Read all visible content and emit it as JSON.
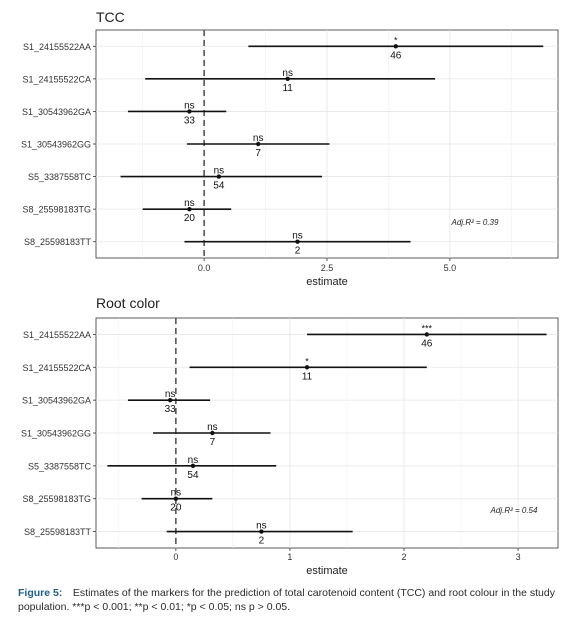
{
  "chart_data": [
    {
      "type": "forest",
      "title": "TCC",
      "xlabel": "estimate",
      "xlim": [
        -2.2,
        7.2
      ],
      "xticks": [
        "0.0",
        "2.5",
        "5.0"
      ],
      "xtick_values": [
        0,
        2.5,
        5.0
      ],
      "reference_line": 0,
      "grid": true,
      "annotation": "Adj.R² = 0.39",
      "rows": [
        {
          "label": "S1_24155522AA",
          "estimate": 3.9,
          "low": 0.9,
          "high": 6.9,
          "sig": "*",
          "n": "46"
        },
        {
          "label": "S1_24155522CA",
          "estimate": 1.7,
          "low": -1.2,
          "high": 4.7,
          "sig": "ns",
          "n": "11"
        },
        {
          "label": "S1_30543962GA",
          "estimate": -0.3,
          "low": -1.55,
          "high": 0.45,
          "sig": "ns",
          "n": "33"
        },
        {
          "label": "S1_30543962GG",
          "estimate": 1.1,
          "low": -0.35,
          "high": 2.55,
          "sig": "ns",
          "n": "7"
        },
        {
          "label": "S5_3387558TC",
          "estimate": 0.3,
          "low": -1.7,
          "high": 2.4,
          "sig": "ns",
          "n": "54"
        },
        {
          "label": "S8_25598183TG",
          "estimate": -0.3,
          "low": -1.25,
          "high": 0.55,
          "sig": "ns",
          "n": "20"
        },
        {
          "label": "S8_25598183TT",
          "estimate": 1.9,
          "low": -0.4,
          "high": 4.2,
          "sig": "ns",
          "n": "2"
        }
      ]
    },
    {
      "type": "forest",
      "title": "Root color",
      "xlabel": "estimate",
      "xlim": [
        -0.7,
        3.35
      ],
      "xticks": [
        "0",
        "1",
        "2",
        "3"
      ],
      "xtick_values": [
        0,
        1,
        2,
        3
      ],
      "reference_line": 0,
      "grid": true,
      "annotation": "Adj.R² = 0.54",
      "rows": [
        {
          "label": "S1_24155522AA",
          "estimate": 2.2,
          "low": 1.15,
          "high": 3.25,
          "sig": "***",
          "n": "46"
        },
        {
          "label": "S1_24155522CA",
          "estimate": 1.15,
          "low": 0.12,
          "high": 2.2,
          "sig": "*",
          "n": "11"
        },
        {
          "label": "S1_30543962GA",
          "estimate": -0.05,
          "low": -0.42,
          "high": 0.3,
          "sig": "ns",
          "n": "33"
        },
        {
          "label": "S1_30543962GG",
          "estimate": 0.32,
          "low": -0.2,
          "high": 0.83,
          "sig": "ns",
          "n": "7"
        },
        {
          "label": "S5_3387558TC",
          "estimate": 0.15,
          "low": -0.6,
          "high": 0.88,
          "sig": "ns",
          "n": "54"
        },
        {
          "label": "S8_25598183TG",
          "estimate": 0.0,
          "low": -0.3,
          "high": 0.32,
          "sig": "ns",
          "n": "20"
        },
        {
          "label": "S8_25598183TT",
          "estimate": 0.75,
          "low": -0.08,
          "high": 1.55,
          "sig": "ns",
          "n": "2"
        }
      ]
    }
  ],
  "caption": {
    "figure_label": "Figure 5:",
    "text": "Estimates of the markers for the prediction of total carotenoid content (TCC) and root colour in the study population. ***p < 0.001; **p < 0.01; *p < 0.05; ns p > 0.05."
  }
}
